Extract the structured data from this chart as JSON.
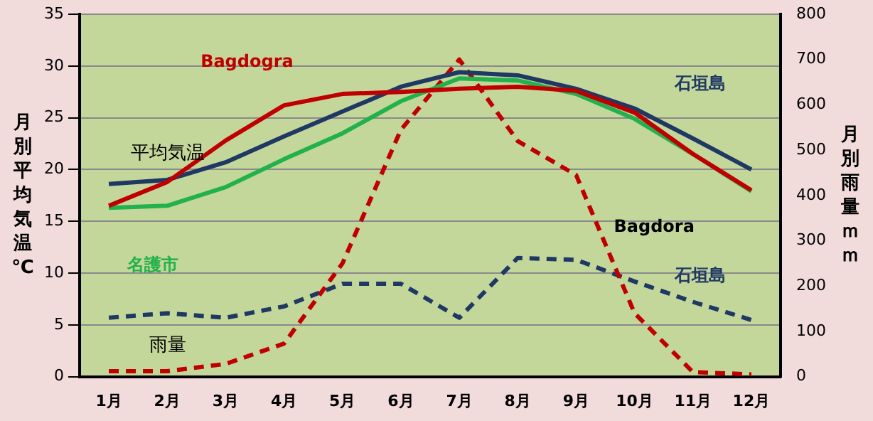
{
  "chart_data": {
    "type": "line",
    "ylabel": "月別平均気温℃",
    "y2label": "月別雨量ｍｍ",
    "categories": [
      "1月",
      "2月",
      "3月",
      "4月",
      "5月",
      "6月",
      "7月",
      "8月",
      "9月",
      "10月",
      "11月",
      "12月"
    ],
    "series": [
      {
        "name": "Bagdogra",
        "color": "#c00000",
        "values": [
          16.5,
          18.8,
          22.8,
          26.2,
          27.3,
          27.5,
          27.8,
          28.0,
          27.6,
          25.5,
          21.5,
          18.0
        ]
      },
      {
        "name": "名護市",
        "color": "#22b14c",
        "values": [
          16.3,
          16.5,
          18.3,
          21.0,
          23.5,
          26.6,
          28.8,
          28.6,
          27.3,
          24.9,
          21.5,
          17.9
        ]
      },
      {
        "name": "石垣島",
        "color": "#1f3864",
        "values": [
          18.6,
          19.0,
          20.7,
          23.2,
          25.6,
          28.0,
          29.4,
          29.1,
          27.8,
          25.9,
          23.0,
          20.0
        ]
      },
      {
        "name": "Bagdora",
        "color": "#c00000",
        "axis": "y2",
        "line_style": "dashed",
        "values": [
          12,
          12,
          28,
          73,
          250,
          545,
          700,
          520,
          445,
          140,
          10,
          5
        ]
      },
      {
        "name": "石垣島",
        "color": "#1f3864",
        "axis": "y2",
        "line_style": "dashed",
        "values": [
          130,
          140,
          130,
          155,
          205,
          205,
          130,
          262,
          258,
          210,
          165,
          125
        ]
      }
    ],
    "annotations": [
      "平均気温",
      "雨量"
    ],
    "ylim": [
      0,
      35
    ],
    "yticks": [
      0,
      5,
      10,
      15,
      20,
      25,
      30,
      35
    ],
    "y2lim": [
      0,
      800
    ],
    "y2ticks": [
      0,
      100,
      200,
      300,
      400,
      500,
      600,
      700,
      800
    ],
    "grid": "y",
    "legend": false,
    "marker": "none"
  }
}
